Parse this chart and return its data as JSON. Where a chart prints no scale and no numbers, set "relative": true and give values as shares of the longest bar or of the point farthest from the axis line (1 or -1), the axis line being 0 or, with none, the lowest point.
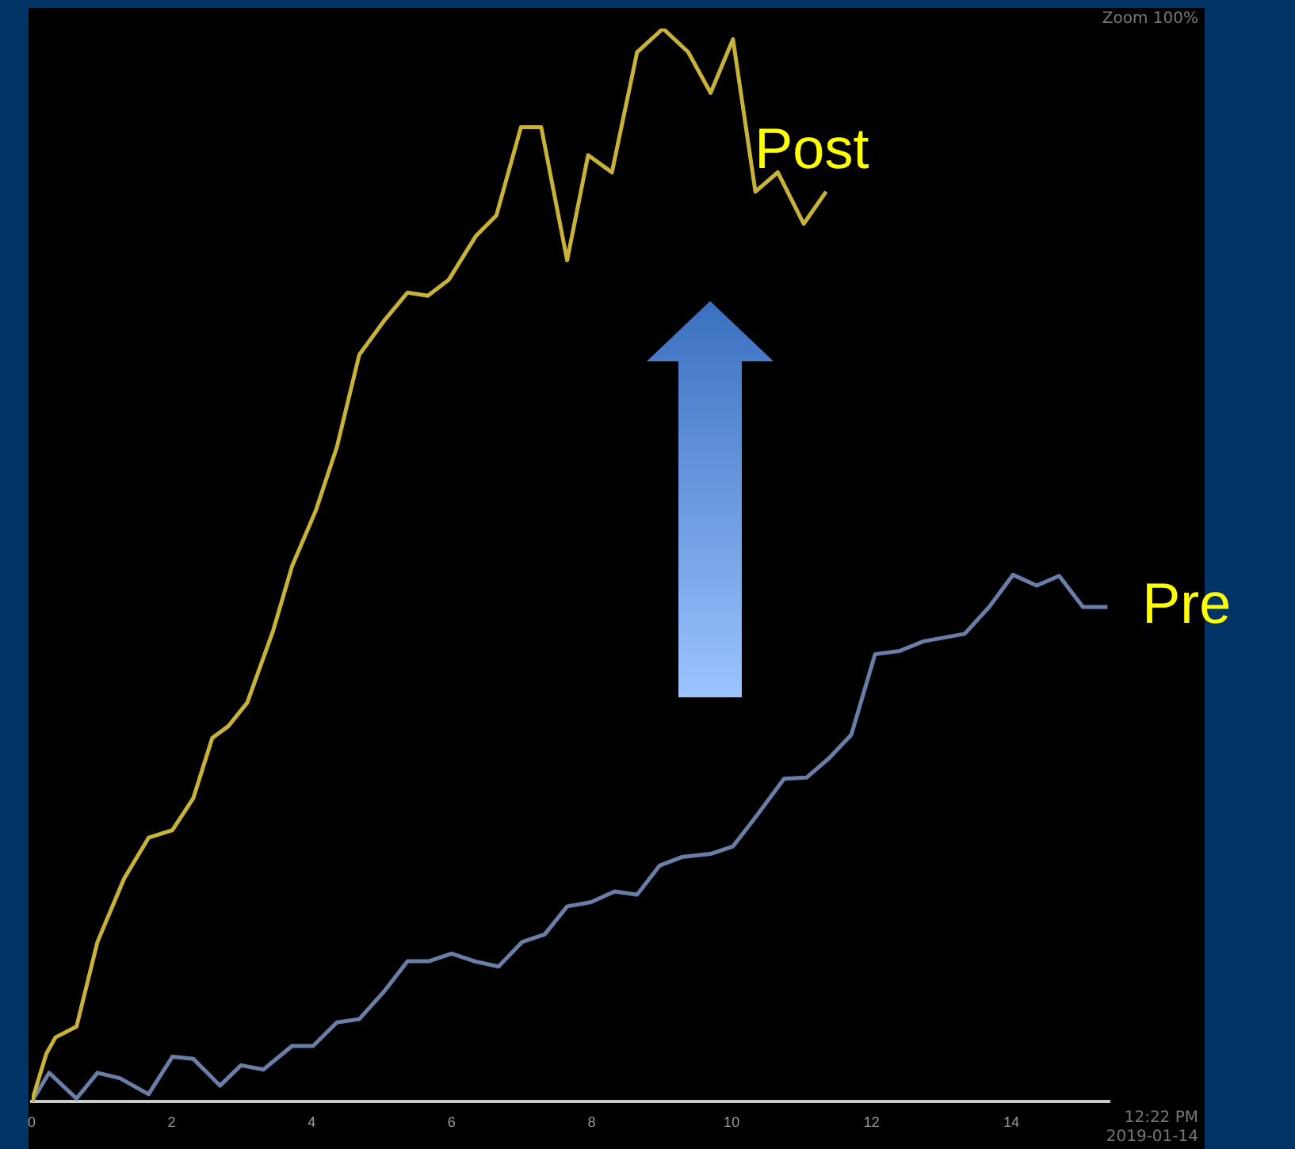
{
  "chart_data": {
    "type": "line",
    "relative": true,
    "xlim": [
      0,
      15.4
    ],
    "xticks": [
      0,
      2,
      4,
      6,
      8,
      10,
      12,
      14
    ],
    "grid": false,
    "legend": false,
    "marker": "none",
    "line_style": "solid",
    "annotations": [
      "Zoom 100%",
      "12:22 PM 2019-01-14"
    ],
    "series": [
      {
        "name": "Post",
        "color": "#c8b23a",
        "x": [
          0,
          0.21,
          0.34,
          0.64,
          0.94,
          1.32,
          1.67,
          2.01,
          2.31,
          2.58,
          2.81,
          3.08,
          3.45,
          3.72,
          4.06,
          4.36,
          4.68,
          5.05,
          5.37,
          5.66,
          5.96,
          6.35,
          6.64,
          6.99,
          7.28,
          7.65,
          7.95,
          8.29,
          8.65,
          9.02,
          9.38,
          9.7,
          10.02,
          10.34,
          10.66,
          11.03,
          11.35
        ],
        "values": [
          0,
          0.045,
          0.06,
          0.07,
          0.149,
          0.208,
          0.246,
          0.253,
          0.283,
          0.339,
          0.35,
          0.372,
          0.439,
          0.499,
          0.551,
          0.61,
          0.696,
          0.729,
          0.754,
          0.751,
          0.766,
          0.807,
          0.826,
          0.908,
          0.908,
          0.784,
          0.882,
          0.866,
          0.978,
          1,
          0.978,
          0.94,
          0.99,
          0.848,
          0.866,
          0.818,
          0.848
        ]
      },
      {
        "name": "Pre",
        "color": "#6a7fa8",
        "x": [
          0,
          0.25,
          0.64,
          0.94,
          1.26,
          1.67,
          2.01,
          2.31,
          2.69,
          2.99,
          3.31,
          3.72,
          4.02,
          4.36,
          4.68,
          5.05,
          5.37,
          5.68,
          6,
          6.32,
          6.67,
          7.01,
          7.33,
          7.65,
          7.99,
          8.33,
          8.65,
          8.97,
          9.29,
          9.7,
          10.02,
          10.34,
          10.75,
          11.07,
          11.39,
          11.71,
          12.05,
          12.4,
          12.74,
          13.33,
          13.68,
          14.02,
          14.36,
          14.68,
          15.02,
          15.37
        ],
        "values": [
          0,
          0.027,
          0.003,
          0.027,
          0.022,
          0.007,
          0.042,
          0.04,
          0.015,
          0.034,
          0.03,
          0.052,
          0.052,
          0.074,
          0.077,
          0.104,
          0.131,
          0.131,
          0.138,
          0.131,
          0.126,
          0.149,
          0.156,
          0.182,
          0.186,
          0.196,
          0.193,
          0.22,
          0.228,
          0.231,
          0.238,
          0.265,
          0.301,
          0.302,
          0.32,
          0.342,
          0.417,
          0.42,
          0.429,
          0.436,
          0.461,
          0.491,
          0.481,
          0.49,
          0.461,
          0.461
        ]
      }
    ]
  }
}
